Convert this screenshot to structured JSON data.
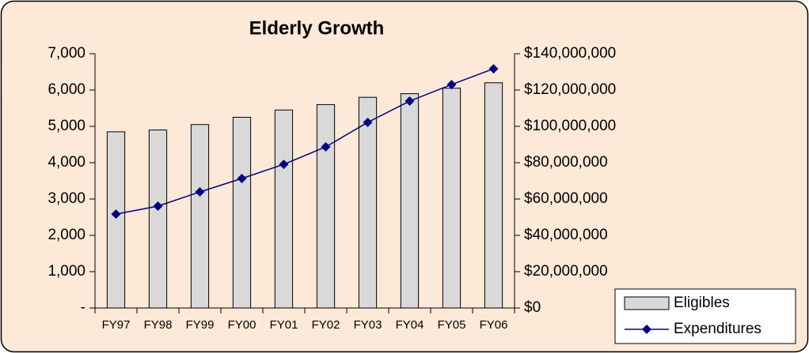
{
  "chart_data": {
    "type": "combo",
    "title": "Elderly Growth",
    "categories": [
      "FY97",
      "FY98",
      "FY99",
      "FY00",
      "FY01",
      "FY02",
      "FY03",
      "FY04",
      "FY05",
      "FY06"
    ],
    "series": [
      {
        "name": "Eligibles",
        "type": "bar",
        "axis": "y",
        "color": "#d9d9d9",
        "values": [
          4850,
          4900,
          5050,
          5250,
          5450,
          5600,
          5800,
          5900,
          6050,
          6200
        ]
      },
      {
        "name": "Expenditures",
        "type": "line",
        "axis": "y2",
        "color": "#000080",
        "values": [
          51700000,
          56100000,
          63900000,
          71300000,
          79100000,
          88700000,
          102200000,
          113900000,
          123000000,
          131700000
        ]
      }
    ],
    "ylim": [
      0,
      7000
    ],
    "yticks": [
      {
        "value": 0,
        "label": "-"
      },
      {
        "value": 1000,
        "label": "1,000"
      },
      {
        "value": 2000,
        "label": "2,000"
      },
      {
        "value": 3000,
        "label": "3,000"
      },
      {
        "value": 4000,
        "label": "4,000"
      },
      {
        "value": 5000,
        "label": "5,000"
      },
      {
        "value": 6000,
        "label": "6,000"
      },
      {
        "value": 7000,
        "label": "7,000"
      }
    ],
    "y2lim": [
      0,
      140000000
    ],
    "y2ticks": [
      {
        "value": 0,
        "label": "$0"
      },
      {
        "value": 20000000,
        "label": "$20,000,000"
      },
      {
        "value": 40000000,
        "label": "$40,000,000"
      },
      {
        "value": 60000000,
        "label": "$60,000,000"
      },
      {
        "value": 80000000,
        "label": "$80,000,000"
      },
      {
        "value": 100000000,
        "label": "$100,000,000"
      },
      {
        "value": 120000000,
        "label": "$120,000,000"
      },
      {
        "value": 140000000,
        "label": "$140,000,000"
      }
    ],
    "grid": false,
    "legend": "lower right"
  }
}
